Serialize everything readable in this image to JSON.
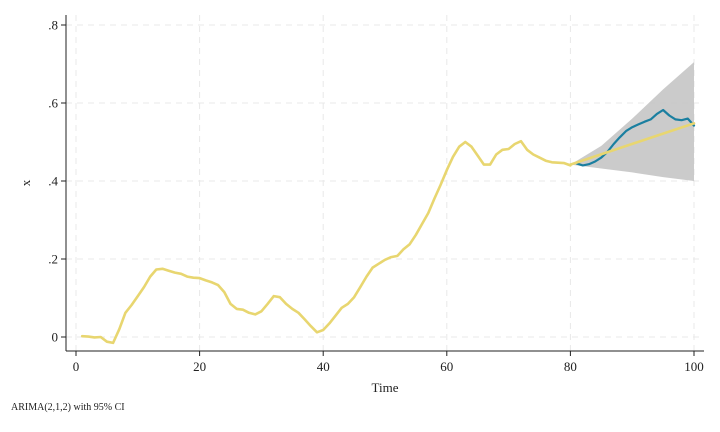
{
  "chart_data": {
    "type": "line",
    "xlabel": "Time",
    "ylabel": "x",
    "note": "ARIMA(2,1,2) with 95% CI",
    "xlim": [
      0,
      100
    ],
    "ylim": [
      -0.02,
      0.82
    ],
    "x_ticks": [
      0,
      20,
      40,
      60,
      80,
      100
    ],
    "x_tick_labels": [
      "0",
      "20",
      "40",
      "60",
      "80",
      "100"
    ],
    "y_ticks": [
      0,
      0.2,
      0.4,
      0.6,
      0.8
    ],
    "y_tick_labels": [
      "0",
      ".2",
      ".4",
      ".6",
      ".8"
    ],
    "grid": true,
    "colors": {
      "actual": "#1a7fa0",
      "forecast": "#e8d670",
      "ci_band": "#c8c8c8"
    },
    "series": [
      {
        "key": "actual",
        "x": [
          81,
          82,
          83,
          84,
          85,
          86,
          87,
          88,
          89,
          90,
          91,
          92,
          93,
          94,
          95,
          96,
          97,
          98,
          99,
          100
        ],
        "values": [
          0.445,
          0.44,
          0.443,
          0.45,
          0.46,
          0.475,
          0.495,
          0.512,
          0.528,
          0.538,
          0.545,
          0.552,
          0.558,
          0.572,
          0.582,
          0.568,
          0.558,
          0.556,
          0.56,
          0.542
        ]
      },
      {
        "key": "fitted",
        "x": [
          1,
          2,
          3,
          4,
          5,
          6,
          7,
          8,
          9,
          10,
          11,
          12,
          13,
          14,
          15,
          16,
          17,
          18,
          19,
          20,
          21,
          22,
          23,
          24,
          25,
          26,
          27,
          28,
          29,
          30,
          31,
          32,
          33,
          34,
          35,
          36,
          37,
          38,
          39,
          40,
          41,
          42,
          43,
          44,
          45,
          46,
          47,
          48,
          49,
          50,
          51,
          52,
          53,
          54,
          55,
          56,
          57,
          58,
          59,
          60,
          61,
          62,
          63,
          64,
          65,
          66,
          67,
          68,
          69,
          70,
          71,
          72,
          73,
          74,
          75,
          76,
          77,
          78,
          79,
          80
        ],
        "values": [
          0.002,
          0.001,
          -0.001,
          0.0,
          -0.012,
          -0.015,
          0.02,
          0.062,
          0.082,
          0.105,
          0.128,
          0.155,
          0.173,
          0.175,
          0.17,
          0.165,
          0.162,
          0.155,
          0.152,
          0.151,
          0.145,
          0.14,
          0.133,
          0.115,
          0.085,
          0.072,
          0.07,
          0.062,
          0.058,
          0.066,
          0.085,
          0.105,
          0.102,
          0.085,
          0.072,
          0.062,
          0.045,
          0.028,
          0.012,
          0.018,
          0.035,
          0.055,
          0.075,
          0.085,
          0.102,
          0.128,
          0.155,
          0.178,
          0.188,
          0.198,
          0.205,
          0.208,
          0.225,
          0.238,
          0.262,
          0.29,
          0.318,
          0.355,
          0.39,
          0.428,
          0.462,
          0.488,
          0.5,
          0.488,
          0.465,
          0.442,
          0.442,
          0.468,
          0.48,
          0.482,
          0.495,
          0.502,
          0.48,
          0.468,
          0.46,
          0.452,
          0.448,
          0.447,
          0.446,
          0.44
        ]
      },
      {
        "key": "forecast",
        "x": [
          80,
          100
        ],
        "values": [
          0.442,
          0.548
        ]
      }
    ],
    "ci": {
      "x": [
        80,
        85,
        90,
        95,
        100
      ],
      "upper": [
        0.442,
        0.49,
        0.56,
        0.635,
        0.705
      ],
      "lower": [
        0.442,
        0.432,
        0.422,
        0.41,
        0.4
      ]
    }
  }
}
